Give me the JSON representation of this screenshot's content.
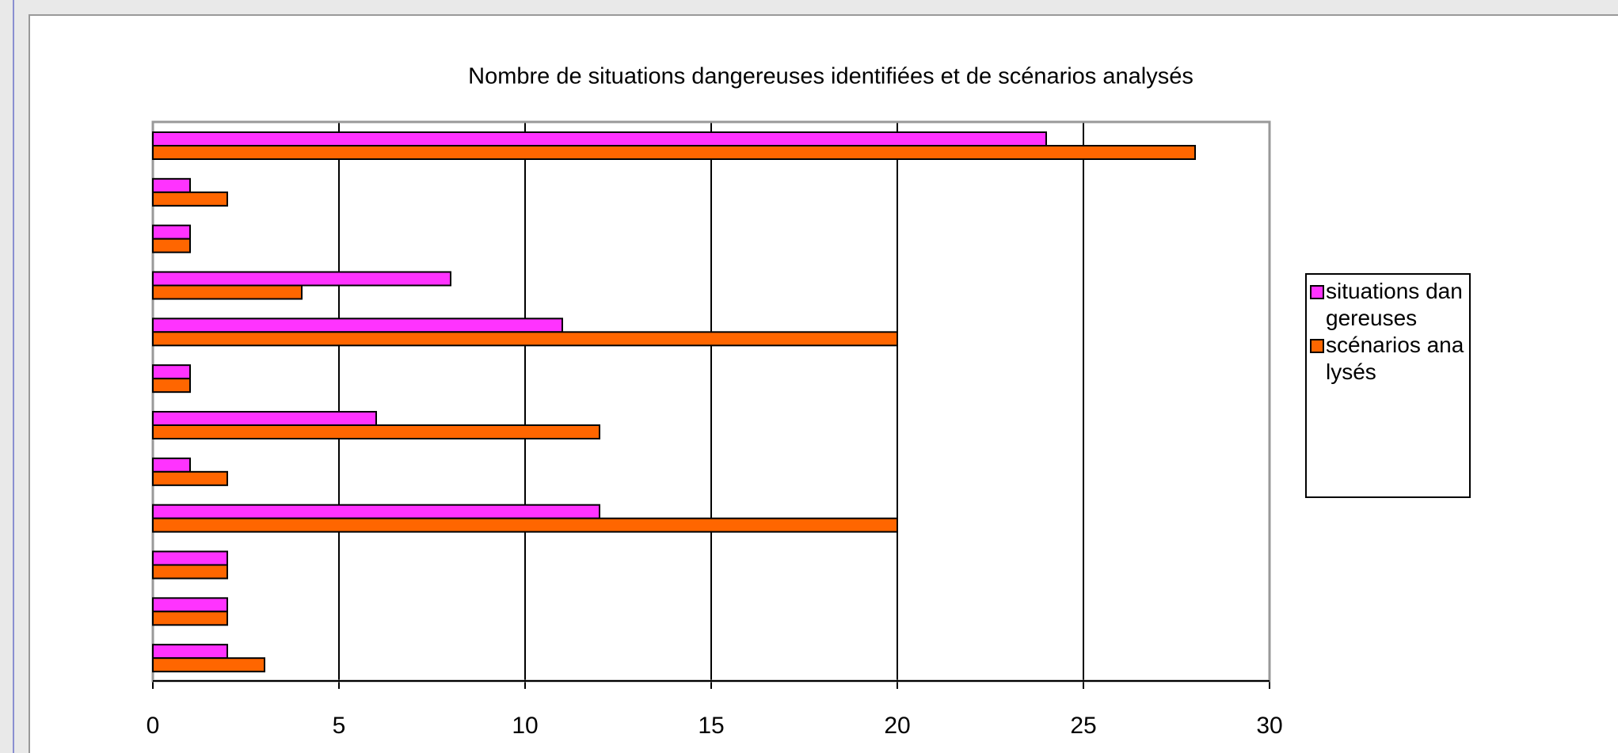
{
  "chart_data": {
    "type": "bar",
    "orientation": "horizontal",
    "title": "Nombre de situations dangereuses identifiées et de scénarios analysés",
    "categories": [
      null,
      null,
      null,
      null,
      null,
      null,
      null,
      null,
      null,
      null,
      null,
      null
    ],
    "series": [
      {
        "name": "situations dangereuses",
        "color": "#ff33ff",
        "values": [
          24,
          1,
          1,
          8,
          11,
          1,
          6,
          1,
          12,
          2,
          2,
          2
        ]
      },
      {
        "name": "scénarios analysés",
        "color": "#ff6600",
        "values": [
          28,
          2,
          1,
          4,
          20,
          1,
          12,
          2,
          20,
          2,
          2,
          3
        ]
      }
    ],
    "xlim": [
      0,
      30
    ],
    "xticks": [
      0,
      5,
      10,
      15,
      20,
      25,
      30
    ],
    "grid": true,
    "legend": "right"
  }
}
